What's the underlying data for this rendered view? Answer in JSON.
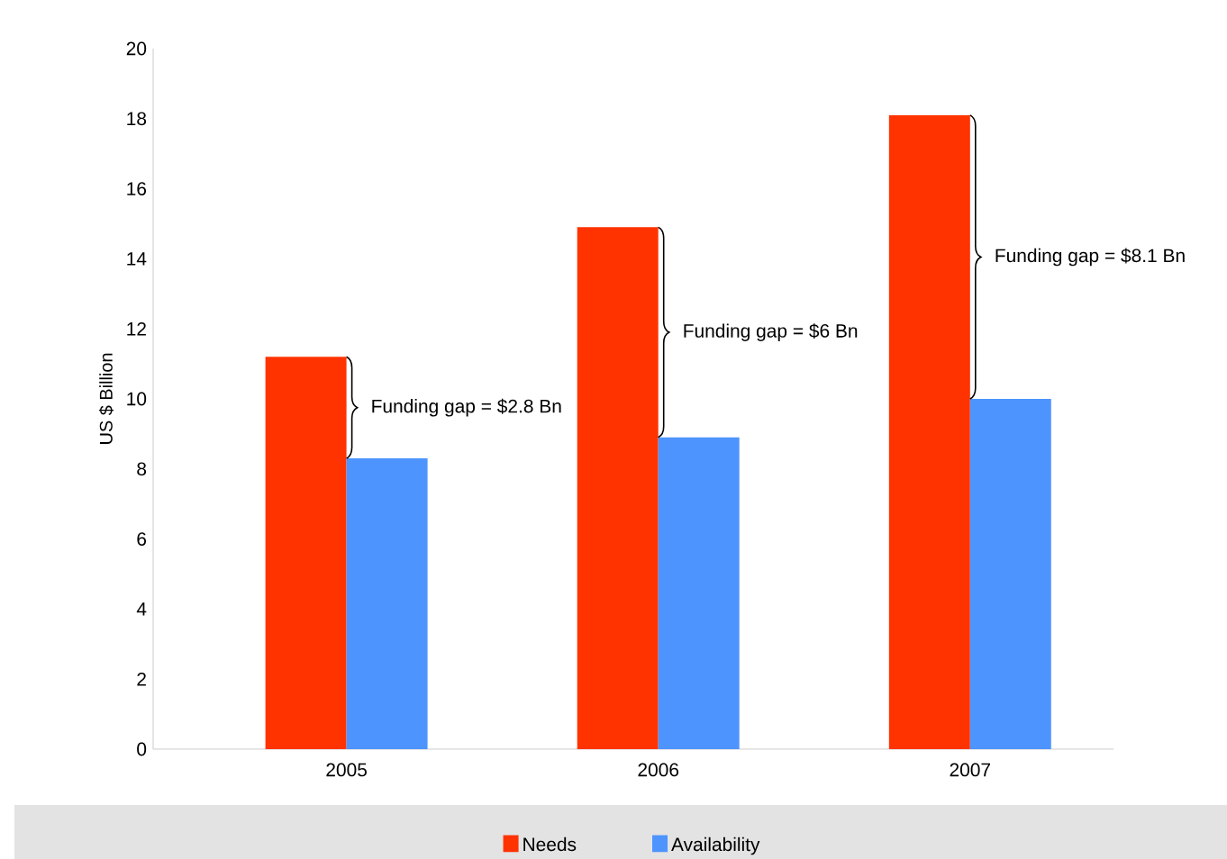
{
  "chart_data": {
    "type": "bar",
    "ylabel": "US $ Billion",
    "categories": [
      "2005",
      "2006",
      "2007"
    ],
    "series": [
      {
        "name": "Needs",
        "color": "#ff3300",
        "values": [
          11.2,
          14.9,
          18.1
        ]
      },
      {
        "name": "Availability",
        "color": "#4d94ff",
        "values": [
          8.3,
          8.9,
          10.0
        ]
      }
    ],
    "ylim": [
      0,
      20
    ],
    "yticks": [
      0,
      2,
      4,
      6,
      8,
      10,
      12,
      14,
      16,
      18,
      20
    ],
    "annotations": [
      {
        "text": "Funding gap = $2.8 Bn",
        "x": "2005",
        "y": 9.75
      },
      {
        "text": "Funding gap = $6 Bn",
        "x": "2006",
        "y": 11.9
      },
      {
        "text": "Funding gap = $8.1 Bn",
        "x": "2007",
        "y": 14.05
      }
    ],
    "legend": "bottom"
  }
}
